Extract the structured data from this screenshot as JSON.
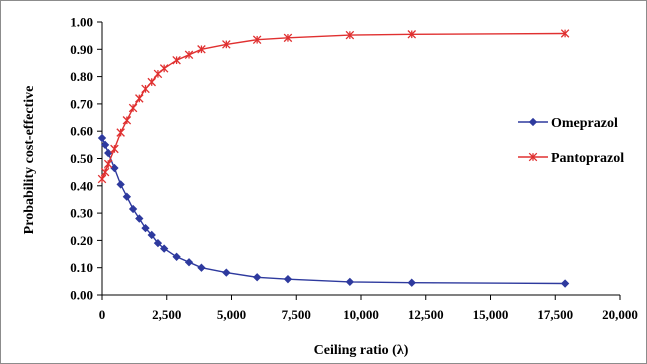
{
  "chart_data": {
    "type": "line",
    "title": "",
    "xlabel": "Ceiling ratio (λ)",
    "ylabel": "Probability cost-effective",
    "xlim": [
      0,
      20000
    ],
    "ylim": [
      0,
      1.0
    ],
    "x_ticks": [
      0,
      2500,
      5000,
      7500,
      10000,
      12500,
      15000,
      17500,
      20000
    ],
    "x_tick_labels": [
      "0",
      "2,500",
      "5,000",
      "7,500",
      "10,000",
      "12,500",
      "15,000",
      "17,500",
      "20,000"
    ],
    "y_ticks": [
      0,
      0.1,
      0.2,
      0.3,
      0.4,
      0.5,
      0.6,
      0.7,
      0.8,
      0.9,
      1.0
    ],
    "y_tick_labels": [
      "0.00",
      "0.10",
      "0.20",
      "0.30",
      "0.40",
      "0.50",
      "0.60",
      "0.70",
      "0.80",
      "0.90",
      "1.00"
    ],
    "grid": false,
    "legend_position": "right",
    "series": [
      {
        "name": "Omeprazol",
        "color": "#2e3a9e",
        "marker": "diamond",
        "points": [
          [
            0,
            0.575
          ],
          [
            120,
            0.55
          ],
          [
            240,
            0.52
          ],
          [
            480,
            0.465
          ],
          [
            720,
            0.405
          ],
          [
            960,
            0.36
          ],
          [
            1200,
            0.315
          ],
          [
            1440,
            0.28
          ],
          [
            1680,
            0.245
          ],
          [
            1920,
            0.22
          ],
          [
            2160,
            0.19
          ],
          [
            2400,
            0.17
          ],
          [
            2880,
            0.14
          ],
          [
            3360,
            0.12
          ],
          [
            3840,
            0.1
          ],
          [
            4800,
            0.082
          ],
          [
            5990,
            0.065
          ],
          [
            7180,
            0.058
          ],
          [
            9570,
            0.048
          ],
          [
            11960,
            0.045
          ],
          [
            17880,
            0.042
          ]
        ]
      },
      {
        "name": "Pantoprazol",
        "color": "#e03030",
        "marker": "asterisk",
        "points": [
          [
            0,
            0.425
          ],
          [
            120,
            0.45
          ],
          [
            240,
            0.48
          ],
          [
            480,
            0.535
          ],
          [
            720,
            0.595
          ],
          [
            960,
            0.64
          ],
          [
            1200,
            0.685
          ],
          [
            1440,
            0.72
          ],
          [
            1680,
            0.755
          ],
          [
            1920,
            0.78
          ],
          [
            2160,
            0.81
          ],
          [
            2400,
            0.83
          ],
          [
            2880,
            0.86
          ],
          [
            3360,
            0.88
          ],
          [
            3840,
            0.9
          ],
          [
            4800,
            0.918
          ],
          [
            5990,
            0.935
          ],
          [
            7180,
            0.942
          ],
          [
            9570,
            0.952
          ],
          [
            11960,
            0.955
          ],
          [
            17880,
            0.958
          ]
        ]
      }
    ]
  }
}
